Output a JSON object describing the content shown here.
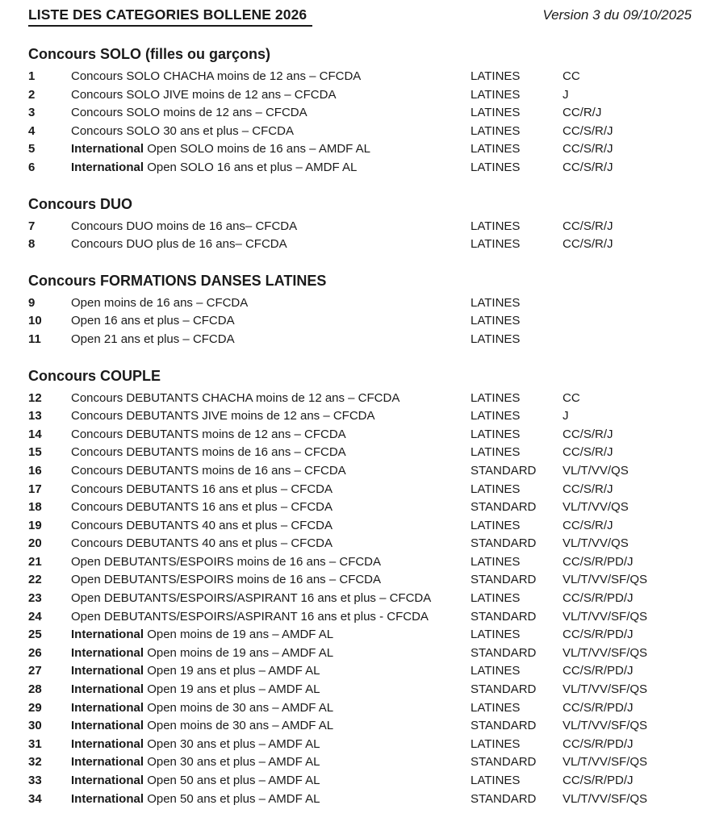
{
  "header": {
    "title": "LISTE DES CATEGORIES BOLLENE 2026",
    "version": "Version 3 du 09/10/2025"
  },
  "sections": [
    {
      "heading": "Concours SOLO (filles ou garçons)",
      "rows": [
        {
          "num": "1",
          "prefix": "",
          "label": "Concours SOLO CHACHA moins de 12 ans – CFCDA",
          "style": "LATINES",
          "dances": "CC"
        },
        {
          "num": "2",
          "prefix": "",
          "label": "Concours SOLO JIVE moins de 12 ans – CFCDA",
          "style": "LATINES",
          "dances": "J"
        },
        {
          "num": "3",
          "prefix": "",
          "label": "Concours SOLO moins de 12 ans – CFCDA",
          "style": "LATINES",
          "dances": "CC/R/J"
        },
        {
          "num": "4",
          "prefix": "",
          "label": "Concours SOLO 30 ans et plus – CFCDA",
          "style": "LATINES",
          "dances": "CC/S/R/J"
        },
        {
          "num": "5",
          "prefix": "International",
          "label": "Open SOLO moins de 16 ans – AMDF AL",
          "style": "LATINES",
          "dances": "CC/S/R/J"
        },
        {
          "num": "6",
          "prefix": "International",
          "label": "Open SOLO 16 ans et plus – AMDF AL",
          "style": "LATINES",
          "dances": "CC/S/R/J"
        }
      ]
    },
    {
      "heading": "Concours DUO",
      "rows": [
        {
          "num": "7",
          "prefix": "",
          "label": "Concours DUO moins de 16 ans– CFCDA",
          "style": "LATINES",
          "dances": "CC/S/R/J"
        },
        {
          "num": "8",
          "prefix": "",
          "label": "Concours DUO plus de 16 ans– CFCDA",
          "style": "LATINES",
          "dances": "CC/S/R/J"
        }
      ]
    },
    {
      "heading": "Concours FORMATIONS DANSES LATINES",
      "rows": [
        {
          "num": "9",
          "prefix": "",
          "label": "Open moins de 16 ans – CFCDA",
          "style": "LATINES",
          "dances": ""
        },
        {
          "num": "10",
          "prefix": "",
          "label": "Open 16 ans et plus – CFCDA",
          "style": "LATINES",
          "dances": ""
        },
        {
          "num": "11",
          "prefix": "",
          "label": "Open 21 ans et plus – CFCDA",
          "style": "LATINES",
          "dances": ""
        }
      ]
    },
    {
      "heading": "Concours COUPLE",
      "rows": [
        {
          "num": "12",
          "prefix": "",
          "label": "Concours DEBUTANTS CHACHA moins de 12 ans – CFCDA",
          "style": "LATINES",
          "dances": "CC"
        },
        {
          "num": "13",
          "prefix": "",
          "label": "Concours DEBUTANTS JIVE moins de 12 ans – CFCDA",
          "style": "LATINES",
          "dances": "J"
        },
        {
          "num": "14",
          "prefix": "",
          "label": "Concours DEBUTANTS moins de 12 ans – CFCDA",
          "style": "LATINES",
          "dances": "CC/S/R/J"
        },
        {
          "num": "15",
          "prefix": "",
          "label": "Concours DEBUTANTS moins de 16 ans – CFCDA",
          "style": "LATINES",
          "dances": "CC/S/R/J"
        },
        {
          "num": "16",
          "prefix": "",
          "label": "Concours DEBUTANTS moins de 16 ans – CFCDA",
          "style": "STANDARD",
          "dances": "VL/T/VV/QS"
        },
        {
          "num": "17",
          "prefix": "",
          "label": "Concours DEBUTANTS 16 ans et plus – CFCDA",
          "style": "LATINES",
          "dances": "CC/S/R/J"
        },
        {
          "num": "18",
          "prefix": "",
          "label": "Concours DEBUTANTS 16 ans et plus – CFCDA",
          "style": "STANDARD",
          "dances": "VL/T/VV/QS"
        },
        {
          "num": "19",
          "prefix": "",
          "label": "Concours DEBUTANTS 40 ans et plus – CFCDA",
          "style": "LATINES",
          "dances": "CC/S/R/J"
        },
        {
          "num": "20",
          "prefix": "",
          "label": "Concours DEBUTANTS 40 ans et plus – CFCDA",
          "style": "STANDARD",
          "dances": "VL/T/VV/QS"
        },
        {
          "num": "21",
          "prefix": "",
          "label": "Open DEBUTANTS/ESPOIRS moins de 16 ans – CFCDA",
          "style": "LATINES",
          "dances": "CC/S/R/PD/J"
        },
        {
          "num": "22",
          "prefix": "",
          "label": "Open DEBUTANTS/ESPOIRS moins de 16 ans – CFCDA",
          "style": "STANDARD",
          "dances": "VL/T/VV/SF/QS"
        },
        {
          "num": "23",
          "prefix": "",
          "label": "Open DEBUTANTS/ESPOIRS/ASPIRANT 16 ans et plus – CFCDA",
          "style": "LATINES",
          "dances": "CC/S/R/PD/J"
        },
        {
          "num": "24",
          "prefix": "",
          "label": "Open DEBUTANTS/ESPOIRS/ASPIRANT 16 ans et plus - CFCDA",
          "style": "STANDARD",
          "dances": "VL/T/VV/SF/QS"
        },
        {
          "num": "25",
          "prefix": "International",
          "label": "Open moins de 19 ans – AMDF AL",
          "style": "LATINES",
          "dances": "CC/S/R/PD/J"
        },
        {
          "num": "26",
          "prefix": "International",
          "label": "Open moins de 19 ans – AMDF AL",
          "style": "STANDARD",
          "dances": "VL/T/VV/SF/QS"
        },
        {
          "num": "27",
          "prefix": "International",
          "label": "Open 19 ans et plus – AMDF AL",
          "style": "LATINES",
          "dances": "CC/S/R/PD/J"
        },
        {
          "num": "28",
          "prefix": "International",
          "label": "Open 19 ans et plus – AMDF AL",
          "style": "STANDARD",
          "dances": "VL/T/VV/SF/QS"
        },
        {
          "num": "29",
          "prefix": "International",
          "label": "Open moins de 30 ans – AMDF AL",
          "style": "LATINES",
          "dances": "CC/S/R/PD/J"
        },
        {
          "num": "30",
          "prefix": "International",
          "label": "Open moins de 30 ans – AMDF AL",
          "style": "STANDARD",
          "dances": "VL/T/VV/SF/QS"
        },
        {
          "num": "31",
          "prefix": "International",
          "label": "Open 30 ans et plus – AMDF AL",
          "style": "LATINES",
          "dances": "CC/S/R/PD/J"
        },
        {
          "num": "32",
          "prefix": "International",
          "label": "Open 30 ans et plus – AMDF AL",
          "style": "STANDARD",
          "dances": "VL/T/VV/SF/QS"
        },
        {
          "num": "33",
          "prefix": "International",
          "label": "Open 50 ans et plus – AMDF AL",
          "style": "LATINES",
          "dances": "CC/S/R/PD/J"
        },
        {
          "num": "34",
          "prefix": "International",
          "label": "Open 50 ans et plus – AMDF AL",
          "style": "STANDARD",
          "dances": "VL/T/VV/SF/QS"
        }
      ]
    }
  ]
}
